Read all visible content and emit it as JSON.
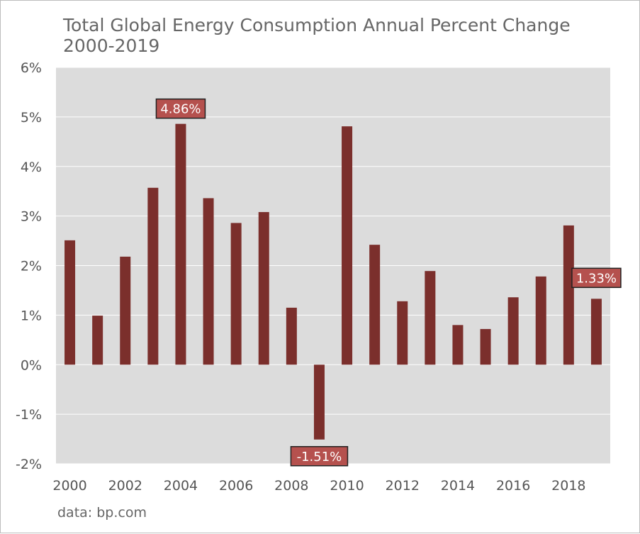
{
  "chart_data": {
    "type": "bar",
    "title_line1": "Total Global Energy Consumption Annual Percent Change",
    "title_line2": "2000-2019",
    "source": "data: bp.com",
    "categories": [
      "2000",
      "2001",
      "2002",
      "2003",
      "2004",
      "2005",
      "2006",
      "2007",
      "2008",
      "2009",
      "2010",
      "2011",
      "2012",
      "2013",
      "2014",
      "2015",
      "2016",
      "2017",
      "2018",
      "2019"
    ],
    "values": [
      2.51,
      0.99,
      2.18,
      3.57,
      4.86,
      3.36,
      2.86,
      3.08,
      1.15,
      -1.51,
      4.81,
      2.42,
      1.28,
      1.89,
      0.8,
      0.72,
      1.36,
      1.78,
      2.81,
      1.33
    ],
    "x_tick_labels": [
      "2000",
      "2002",
      "2004",
      "2006",
      "2008",
      "2010",
      "2012",
      "2014",
      "2016",
      "2018"
    ],
    "y_ticks": [
      6,
      5,
      4,
      3,
      2,
      1,
      0,
      -1,
      -2
    ],
    "y_tick_labels": [
      "6%",
      "5%",
      "4%",
      "3%",
      "2%",
      "1%",
      "0%",
      "-1%",
      "-2%"
    ],
    "ylim": [
      -2,
      6
    ],
    "grid": true,
    "bar_color": "#7b2f2c",
    "plot_background": "#dcdcdc",
    "callout_color": "#b5514e",
    "annotations": [
      {
        "category": "2004",
        "label": "4.86%",
        "placement": "above"
      },
      {
        "category": "2009",
        "label": "-1.51%",
        "placement": "below"
      },
      {
        "category": "2019",
        "label": "1.33%",
        "placement": "above"
      }
    ]
  }
}
